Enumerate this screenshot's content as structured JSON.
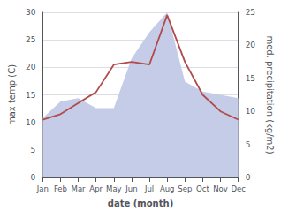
{
  "chart_data": {
    "type": "line",
    "categories": [
      "Jan",
      "Feb",
      "Mar",
      "Apr",
      "May",
      "Jun",
      "Jul",
      "Aug",
      "Sep",
      "Oct",
      "Nov",
      "Dec"
    ],
    "xlabel": "date (month)",
    "ylabel": "max temp (C)",
    "y2label": "med. precipitation (kg/m2)",
    "series": [
      {
        "type": "area",
        "color": "#c5cce8",
        "axis": "y2",
        "values": [
          9.0,
          11.5,
          12.0,
          10.5,
          10.5,
          18.0,
          22.0,
          25.0,
          14.5,
          13.0,
          12.5,
          12.0
        ]
      },
      {
        "type": "line",
        "color": "#b34a4a",
        "values": [
          10.5,
          11.5,
          13.5,
          15.5,
          20.5,
          21.0,
          20.5,
          29.5,
          21.0,
          15.0,
          12.0,
          10.5
        ]
      }
    ],
    "ylim": [
      0,
      30
    ],
    "yticks": [
      0,
      5,
      10,
      15,
      20,
      25,
      30
    ],
    "y2lim": [
      0,
      25
    ],
    "y2ticks": [
      0,
      5,
      10,
      15,
      20,
      25
    ],
    "grid": true
  }
}
